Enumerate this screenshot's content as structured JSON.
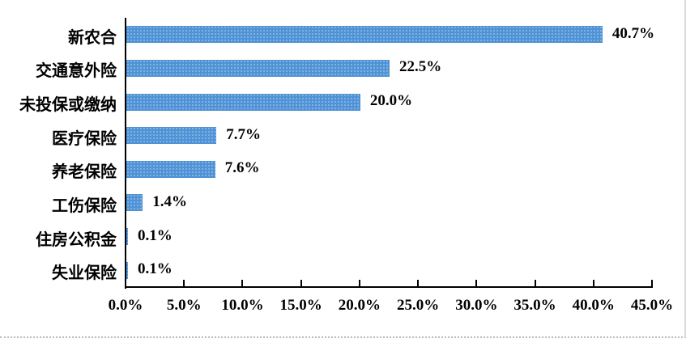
{
  "chart_data": {
    "type": "bar",
    "orientation": "horizontal",
    "title": "",
    "xlabel": "",
    "ylabel": "",
    "categories": [
      "新农合",
      "交通意外险",
      "未投保或缴纳",
      "医疗保险",
      "养老保险",
      "工伤保险",
      "住房公积金",
      "失业保险"
    ],
    "values": [
      40.7,
      22.5,
      20.0,
      7.7,
      7.6,
      1.4,
      0.1,
      0.1
    ],
    "value_labels": [
      "40.7%",
      "22.5%",
      "20.0%",
      "7.7%",
      "7.6%",
      "1.4%",
      "0.1%",
      "0.1%"
    ],
    "x_ticks": [
      "0.0%",
      "5.0%",
      "10.0%",
      "15.0%",
      "20.0%",
      "25.0%",
      "30.0%",
      "35.0%",
      "40.0%",
      "45.0%"
    ],
    "xlim": [
      0,
      45
    ],
    "x_tick_step": 5,
    "grid": false,
    "legend": "none",
    "bar_color": "#4f93d6",
    "axis_color": "#000000",
    "frame_border_color": "#d9d9d9"
  }
}
